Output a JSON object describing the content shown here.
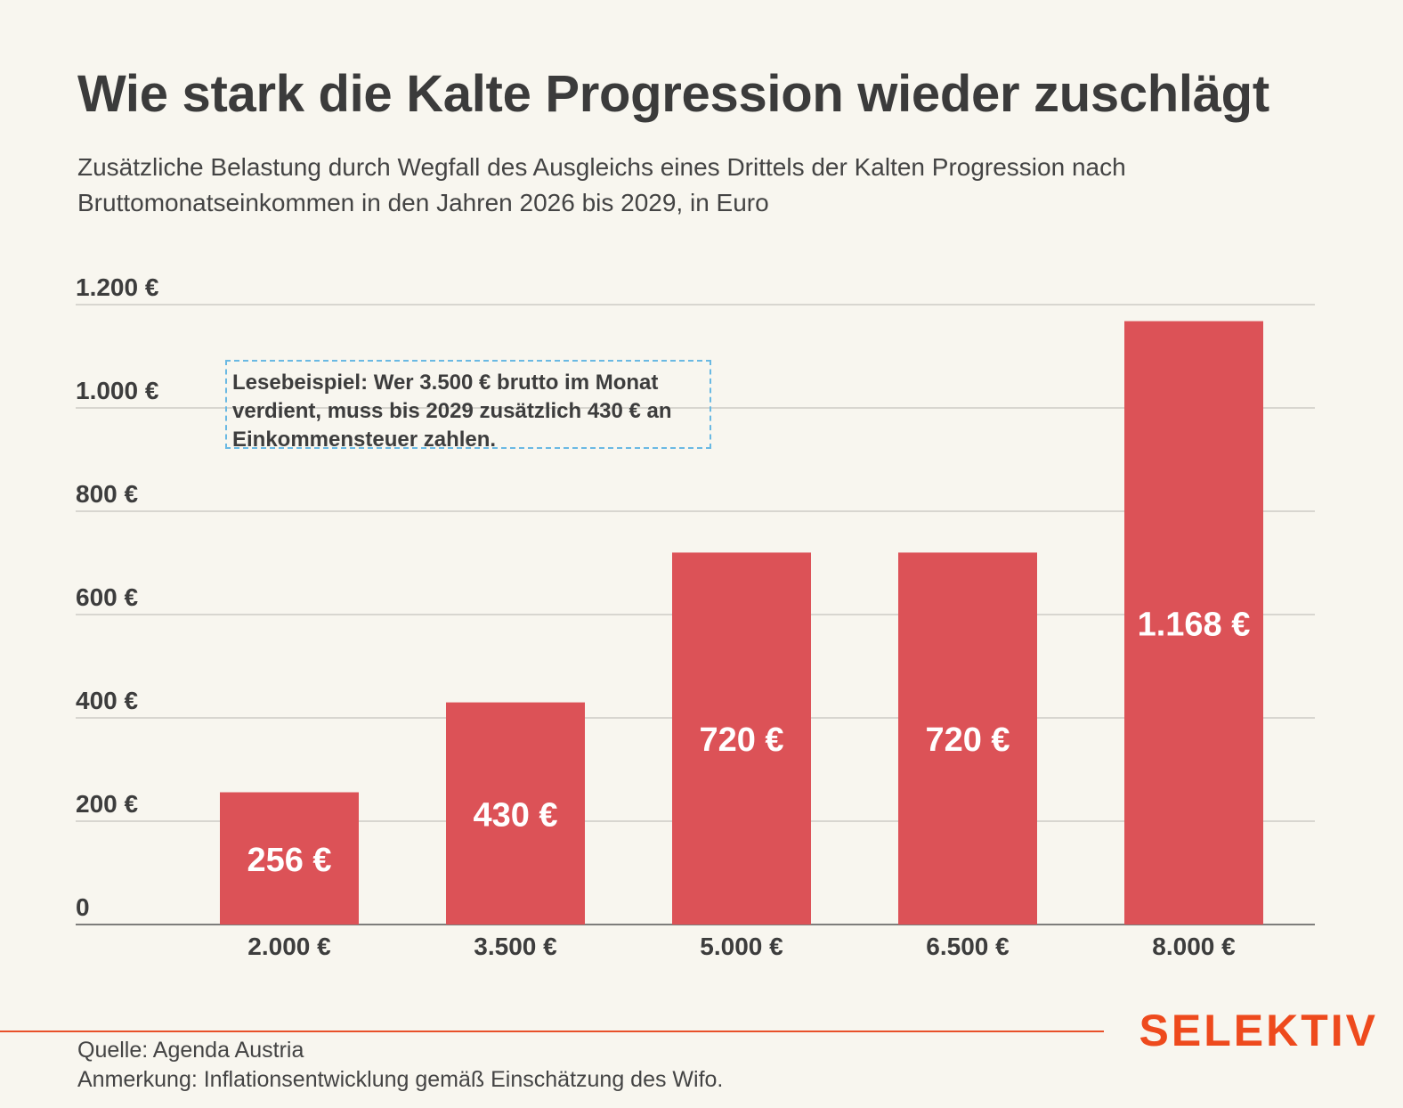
{
  "header": {
    "title": "Wie stark die Kalte Progression wieder zuschlägt",
    "subtitle": "Zusätzliche Belastung durch Wegfall des Ausgleichs eines Drittels der Kalten Progression nach Bruttomonatseinkommen in den Jahren 2026 bis 2029, in Euro"
  },
  "annotation": "Lesebeispiel: Wer 3.500 € brutto im Monat verdient, muss bis 2029 zusätzlich 430 € an Einkommensteuer zahlen.",
  "brand": "SELEKTIV",
  "footer": {
    "source": "Quelle: Agenda Austria",
    "note": "Anmerkung: Inflationsentwicklung gemäß Einschätzung des Wifo."
  },
  "colors": {
    "bar": "#dc5257",
    "grid": "#b9b7b0",
    "brand": "#ee4a1d",
    "annotation_border": "#6ab9e3"
  },
  "chart_data": {
    "type": "bar",
    "title": "Wie stark die Kalte Progression wieder zuschlägt",
    "subtitle": "Zusätzliche Belastung durch Wegfall des Ausgleichs eines Drittels der Kalten Progression nach Bruttomonatseinkommen in den Jahren 2026 bis 2029, in Euro",
    "categories": [
      "2.000 €",
      "3.500 €",
      "5.000 €",
      "6.500 €",
      "8.000 €"
    ],
    "values": [
      256,
      430,
      720,
      720,
      1168
    ],
    "value_labels": [
      "256 €",
      "430 €",
      "720 €",
      "720 €",
      "1.168 €"
    ],
    "ylim": [
      0,
      1200
    ],
    "yticks": [
      0,
      200,
      400,
      600,
      800,
      1000,
      1200
    ],
    "ytick_labels": [
      "0",
      "200 €",
      "400 €",
      "600 €",
      "800 €",
      "1.000 €",
      "1.200 €"
    ],
    "grid": true,
    "xlabel": "",
    "ylabel": ""
  }
}
